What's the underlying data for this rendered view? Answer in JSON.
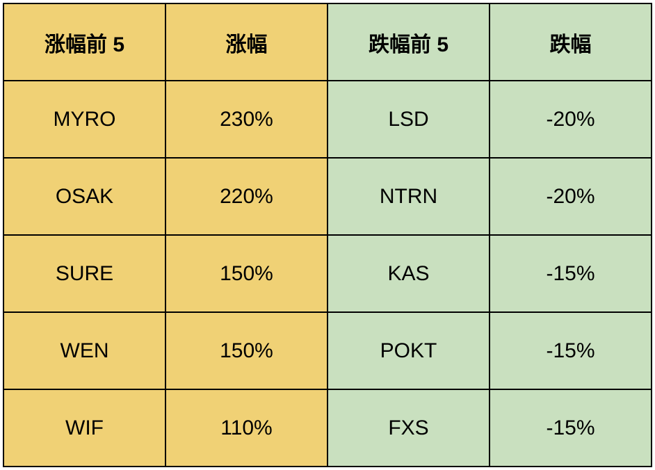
{
  "table": {
    "columns": [
      {
        "label": "涨幅前 5",
        "class": "gain"
      },
      {
        "label": "涨幅",
        "class": "gain"
      },
      {
        "label": "跌幅前 5",
        "class": "loss"
      },
      {
        "label": "跌幅",
        "class": "loss"
      }
    ],
    "rows": [
      {
        "gain_symbol": "MYRO",
        "gain_pct": "230%",
        "loss_symbol": "LSD",
        "loss_pct": "-20%"
      },
      {
        "gain_symbol": "OSAK",
        "gain_pct": "220%",
        "loss_symbol": "NTRN",
        "loss_pct": "-20%"
      },
      {
        "gain_symbol": "SURE",
        "gain_pct": "150%",
        "loss_symbol": "KAS",
        "loss_pct": "-15%"
      },
      {
        "gain_symbol": "WEN",
        "gain_pct": "150%",
        "loss_symbol": "POKT",
        "loss_pct": "-15%"
      },
      {
        "gain_symbol": "WIF",
        "gain_pct": "110%",
        "loss_symbol": "FXS",
        "loss_pct": "-15%"
      }
    ],
    "colors": {
      "gain_bg": "#f0d175",
      "loss_bg": "#c9e0bf",
      "border": "#000000",
      "text": "#000000"
    },
    "font_size": 30,
    "header_font_weight": "bold"
  }
}
